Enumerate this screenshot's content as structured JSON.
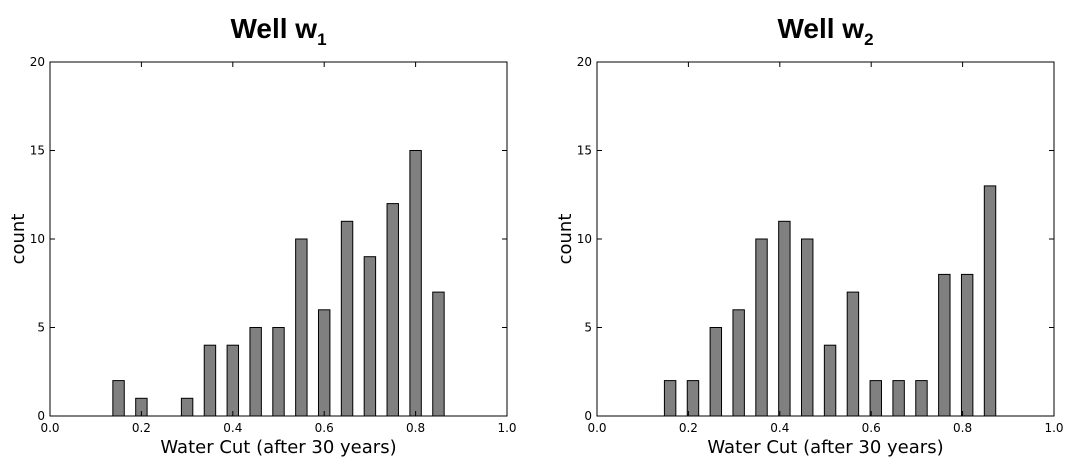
{
  "chart_data": [
    {
      "type": "bar",
      "title": "Well w",
      "title_subscript": "1",
      "xlabel": "Water Cut (after 30 years)",
      "ylabel": "count",
      "xlim": [
        0.0,
        1.0
      ],
      "ylim": [
        0,
        20
      ],
      "xticks": [
        "0.0",
        "0.2",
        "0.4",
        "0.6",
        "0.8",
        "1.0"
      ],
      "yticks": [
        "0",
        "5",
        "10",
        "15",
        "20"
      ],
      "bar_width": 0.025,
      "bars": [
        {
          "x": 0.15,
          "value": 2
        },
        {
          "x": 0.2,
          "value": 1
        },
        {
          "x": 0.25,
          "value": 0
        },
        {
          "x": 0.3,
          "value": 1
        },
        {
          "x": 0.35,
          "value": 4
        },
        {
          "x": 0.4,
          "value": 4
        },
        {
          "x": 0.45,
          "value": 5
        },
        {
          "x": 0.5,
          "value": 5
        },
        {
          "x": 0.55,
          "value": 10
        },
        {
          "x": 0.6,
          "value": 6
        },
        {
          "x": 0.65,
          "value": 11
        },
        {
          "x": 0.7,
          "value": 9
        },
        {
          "x": 0.75,
          "value": 12
        },
        {
          "x": 0.8,
          "value": 15
        },
        {
          "x": 0.85,
          "value": 7
        }
      ],
      "bar_color": "#808080",
      "grid": false
    },
    {
      "type": "bar",
      "title": "Well w",
      "title_subscript": "2",
      "xlabel": "Water Cut (after 30 years)",
      "ylabel": "count",
      "xlim": [
        0.0,
        1.0
      ],
      "ylim": [
        0,
        20
      ],
      "xticks": [
        "0.0",
        "0.2",
        "0.4",
        "0.6",
        "0.8",
        "1.0"
      ],
      "yticks": [
        "0",
        "5",
        "10",
        "15",
        "20"
      ],
      "bar_width": 0.025,
      "bars": [
        {
          "x": 0.16,
          "value": 2
        },
        {
          "x": 0.21,
          "value": 2
        },
        {
          "x": 0.26,
          "value": 5
        },
        {
          "x": 0.31,
          "value": 6
        },
        {
          "x": 0.36,
          "value": 10
        },
        {
          "x": 0.41,
          "value": 11
        },
        {
          "x": 0.46,
          "value": 10
        },
        {
          "x": 0.51,
          "value": 4
        },
        {
          "x": 0.56,
          "value": 7
        },
        {
          "x": 0.61,
          "value": 2
        },
        {
          "x": 0.66,
          "value": 2
        },
        {
          "x": 0.71,
          "value": 2
        },
        {
          "x": 0.76,
          "value": 8
        },
        {
          "x": 0.81,
          "value": 8
        },
        {
          "x": 0.86,
          "value": 13
        }
      ],
      "bar_color": "#808080",
      "grid": false
    }
  ]
}
